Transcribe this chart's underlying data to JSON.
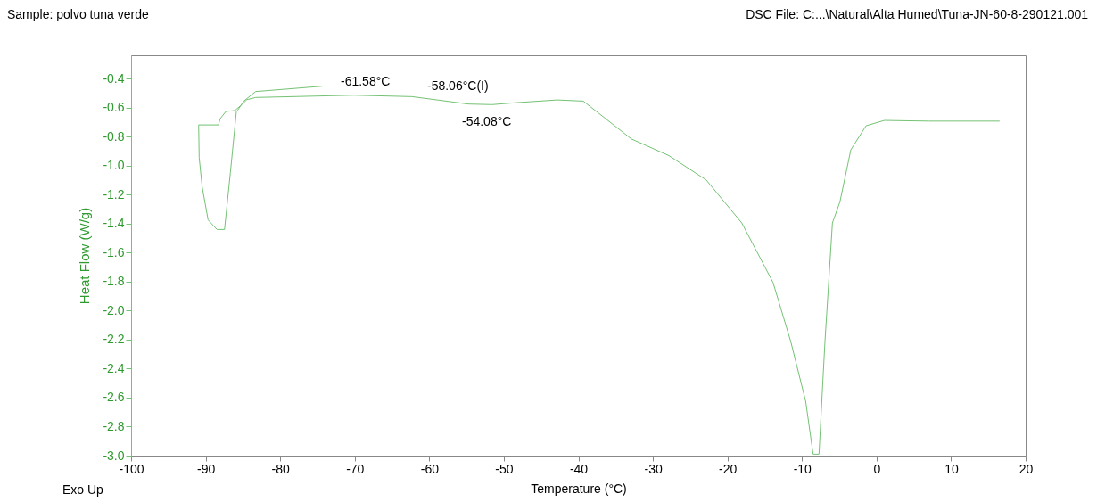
{
  "chart_data": {
    "type": "line",
    "title": "Sample: polvo tuna verde",
    "xlabel": "Temperature (°C)",
    "ylabel": "Heat Flow (W/g)",
    "x": [
      -74.31,
      -83.29,
      -84.89,
      -85.68,
      -85.88,
      -86.68,
      -87.47,
      -88.48,
      -89.67,
      -90.46,
      -90.87,
      -90.94,
      -88.27,
      -88.07,
      -87.28,
      -86.08,
      -85.28,
      -84.48,
      -83.29,
      -70.12,
      -62.35,
      -58.76,
      -54.77,
      -51.58,
      -48.19,
      -42.81,
      -39.34,
      -32.88,
      -27.85,
      -22.86,
      -18.08,
      -13.89,
      -11.5,
      -9.51,
      -8.51,
      -7.72,
      -6.92,
      -5.92,
      -4.92,
      -3.45,
      -1.41,
      1.06,
      7.05,
      16.51
    ],
    "series": [
      {
        "color": "#74c274",
        "values": [
          -0.453,
          -0.49,
          -0.556,
          -0.617,
          -0.627,
          -1.047,
          -1.441,
          -1.441,
          -1.375,
          -1.15,
          -0.945,
          -0.72,
          -0.72,
          -0.678,
          -0.627,
          -0.621,
          -0.586,
          -0.546,
          -0.531,
          -0.515,
          -0.525,
          -0.549,
          -0.576,
          -0.58,
          -0.566,
          -0.548,
          -0.556,
          -0.817,
          -0.932,
          -1.099,
          -1.396,
          -1.806,
          -2.215,
          -2.625,
          -2.99,
          -2.99,
          -2.213,
          -1.396,
          -1.252,
          -0.892,
          -0.726,
          -0.689,
          -0.694,
          -0.694
        ]
      }
    ],
    "xlim": [
      -100,
      20
    ],
    "xticks": [
      {
        "value": -100,
        "label": "-100"
      },
      {
        "value": -90,
        "label": "-90"
      },
      {
        "value": -80,
        "label": "-80"
      },
      {
        "value": -70,
        "label": "-70"
      },
      {
        "value": -60,
        "label": "-60"
      },
      {
        "value": -50,
        "label": "-50"
      },
      {
        "value": -40,
        "label": "-40"
      },
      {
        "value": -30,
        "label": "-30"
      },
      {
        "value": -20,
        "label": "-20"
      },
      {
        "value": -10,
        "label": "-10"
      },
      0,
      10,
      20
    ],
    "ylim": [
      -3.0,
      -0.24
    ],
    "yticks": [
      {
        "value": -3.0,
        "label": "-3.0"
      },
      {
        "value": -2.8,
        "label": "-2.8"
      },
      {
        "value": -2.6,
        "label": "-2.6"
      },
      {
        "value": -2.4,
        "label": "-2.4"
      },
      {
        "value": -2.2,
        "label": "-2.2"
      },
      {
        "value": -2.0,
        "label": "-2.0"
      },
      {
        "value": -1.8,
        "label": "-1.8"
      },
      {
        "value": -1.6,
        "label": "-1.6"
      },
      {
        "value": -1.4,
        "label": "-1.4"
      },
      {
        "value": -1.2,
        "label": "-1.2"
      },
      {
        "value": -1.0,
        "label": "-1.0"
      },
      {
        "value": -0.8,
        "label": "-0.8"
      },
      {
        "value": -0.6,
        "label": "-0.6"
      },
      {
        "value": -0.4,
        "label": "-0.4"
      }
    ],
    "grid": false,
    "annotations": [
      "-61.58°C",
      "-58.06°C(I)",
      "-54.08°C",
      "DSC File: C:...\\Natural\\Alta Humed\\Tuna-JN-60-8-290121.001",
      "Exo Up"
    ]
  }
}
